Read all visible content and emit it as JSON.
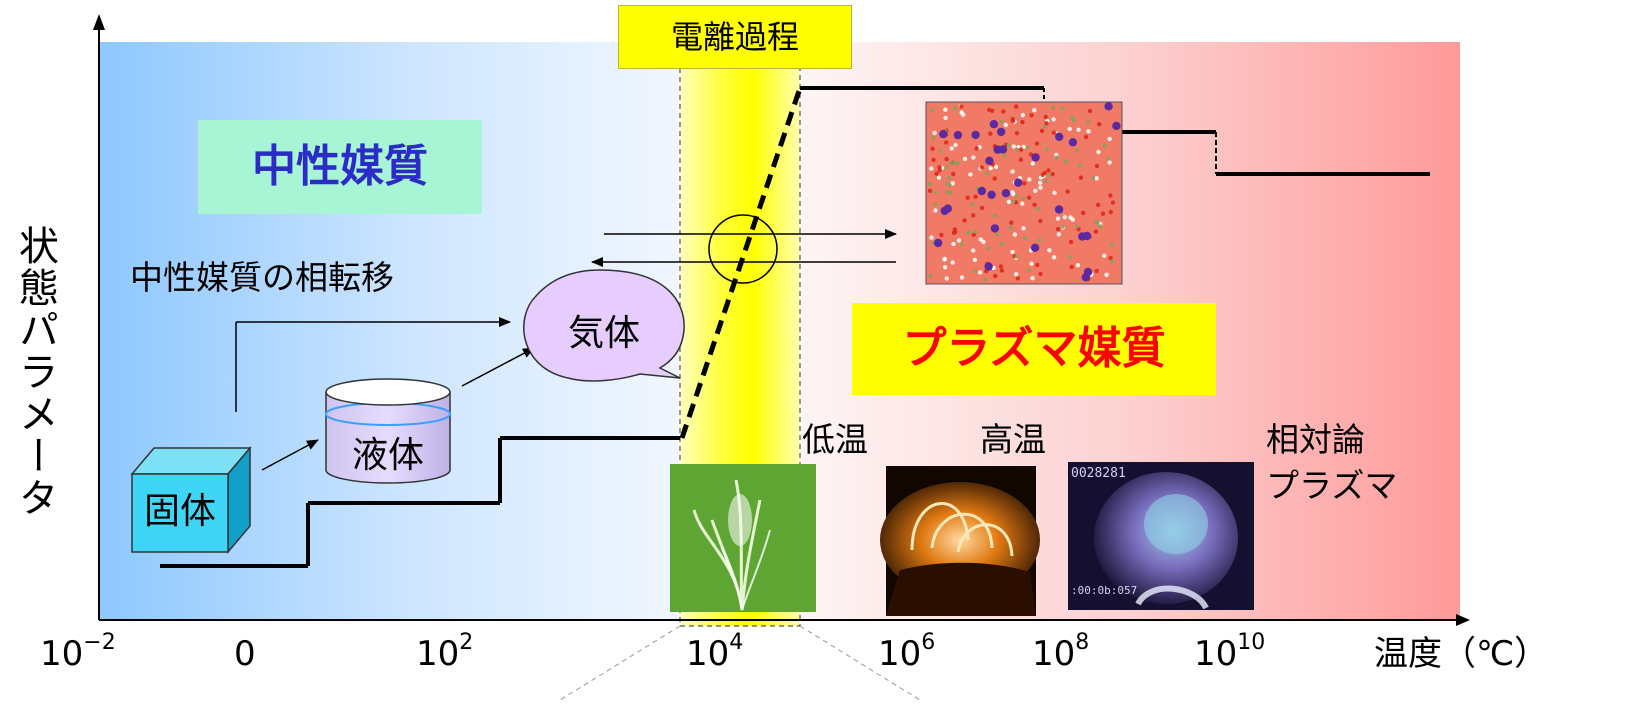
{
  "ionization_label": "電離過程",
  "neutral_label": "中性媒質",
  "neutral_transition_label": "中性媒質の相転移",
  "plasma_label": "プラズマ媒質",
  "y_axis_label": "状態パラメータ",
  "x_axis_label": "温度（℃）",
  "x_ticks": [
    {
      "base": "10",
      "exp": "−2"
    },
    {
      "base": "0",
      "exp": ""
    },
    {
      "base": "10",
      "exp": "2"
    },
    {
      "base": "10",
      "exp": "4"
    },
    {
      "base": "10",
      "exp": "6"
    },
    {
      "base": "10",
      "exp": "8"
    },
    {
      "base": "10",
      "exp": "10"
    }
  ],
  "states": {
    "solid": "固体",
    "liquid": "液体",
    "gas": "気体"
  },
  "plasma_types": {
    "low_temp": "低温",
    "high_temp": "高温",
    "relativistic_line1": "相対論",
    "relativistic_line2": "プラズマ"
  },
  "photo_text": {
    "frame_counter": "0028281",
    "timecode": ":00:0b:057"
  },
  "colors": {
    "neutral_bg": "#8ec8ff",
    "plasma_bg": "#ff9a9a",
    "ionization_band": "#ffff00",
    "neutral_title": "#2b2bc6",
    "plasma_title": "#ff0000"
  }
}
